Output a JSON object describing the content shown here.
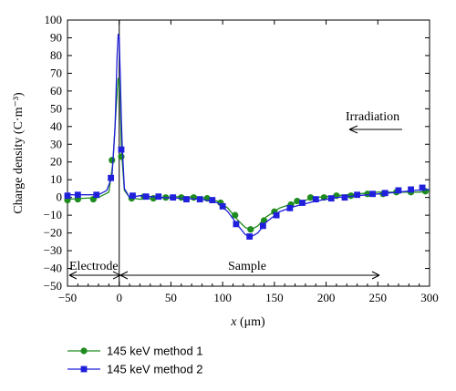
{
  "chart_data": {
    "type": "line",
    "xlabel": "x (μm)",
    "xlabel_parts": {
      "var": "x",
      "unit": "(μm)"
    },
    "ylabel": "Charge density (C·m⁻³)",
    "xlim": [
      -50,
      300
    ],
    "ylim": [
      -50,
      100
    ],
    "xticks": [
      -50,
      0,
      50,
      100,
      150,
      200,
      250,
      300
    ],
    "yticks": [
      -50,
      -40,
      -30,
      -20,
      -10,
      0,
      10,
      20,
      30,
      40,
      50,
      60,
      70,
      80,
      90,
      100
    ],
    "grid": false,
    "legend_position": "bottom-left, below plot",
    "series": [
      {
        "name": "145 keV method 1",
        "color": "#1e8c1e",
        "marker": "circle",
        "line": [
          [
            -50,
            -1
          ],
          [
            -35,
            -0.5
          ],
          [
            -20,
            0
          ],
          [
            -10,
            3
          ],
          [
            -6,
            20
          ],
          [
            -3,
            50
          ],
          [
            -1,
            67
          ],
          [
            0,
            66
          ],
          [
            1,
            55
          ],
          [
            2,
            30
          ],
          [
            3,
            20
          ],
          [
            5,
            4
          ],
          [
            10,
            0
          ],
          [
            20,
            -1
          ],
          [
            40,
            0
          ],
          [
            60,
            0.5
          ],
          [
            80,
            0
          ],
          [
            95,
            -2
          ],
          [
            105,
            -6
          ],
          [
            115,
            -13
          ],
          [
            122,
            -17
          ],
          [
            128,
            -18
          ],
          [
            134,
            -16
          ],
          [
            142,
            -11
          ],
          [
            155,
            -6
          ],
          [
            170,
            -3
          ],
          [
            190,
            0
          ],
          [
            210,
            1
          ],
          [
            230,
            2
          ],
          [
            250,
            3
          ],
          [
            270,
            3
          ],
          [
            290,
            3
          ],
          [
            300,
            3.5
          ]
        ],
        "markers": [
          [
            -50,
            -1.5
          ],
          [
            -40,
            -1
          ],
          [
            -25,
            -1
          ],
          [
            -7,
            21
          ],
          [
            2,
            23
          ],
          [
            12,
            -0.5
          ],
          [
            24,
            0.5
          ],
          [
            33,
            -0.5
          ],
          [
            45,
            0
          ],
          [
            60,
            0
          ],
          [
            72,
            0
          ],
          [
            85,
            -0.5
          ],
          [
            98,
            -3
          ],
          [
            112,
            -10
          ],
          [
            127,
            -18
          ],
          [
            140,
            -13
          ],
          [
            150,
            -8
          ],
          [
            166,
            -4
          ],
          [
            172,
            -2
          ],
          [
            185,
            0
          ],
          [
            198,
            0
          ],
          [
            210,
            1
          ],
          [
            224,
            1
          ],
          [
            240,
            2
          ],
          [
            255,
            2
          ],
          [
            268,
            3
          ],
          [
            282,
            3
          ],
          [
            296,
            3.5
          ]
        ]
      },
      {
        "name": "145 keV method 2",
        "color": "#1f1fdc",
        "marker": "square",
        "line": [
          [
            -50,
            1.5
          ],
          [
            -35,
            1.5
          ],
          [
            -20,
            1.5
          ],
          [
            -12,
            4
          ],
          [
            -7,
            12
          ],
          [
            -4,
            40
          ],
          [
            -2,
            80
          ],
          [
            -1,
            92
          ],
          [
            0,
            90
          ],
          [
            1,
            70
          ],
          [
            2,
            45
          ],
          [
            3,
            28
          ],
          [
            5,
            5
          ],
          [
            10,
            0
          ],
          [
            20,
            1
          ],
          [
            40,
            0
          ],
          [
            60,
            -0.5
          ],
          [
            80,
            -1
          ],
          [
            95,
            -3
          ],
          [
            105,
            -8
          ],
          [
            115,
            -16
          ],
          [
            122,
            -21
          ],
          [
            128,
            -22
          ],
          [
            134,
            -20
          ],
          [
            142,
            -14
          ],
          [
            155,
            -8
          ],
          [
            170,
            -5
          ],
          [
            190,
            -2
          ],
          [
            210,
            0
          ],
          [
            230,
            1
          ],
          [
            250,
            2
          ],
          [
            270,
            3
          ],
          [
            285,
            4
          ],
          [
            300,
            4.5
          ]
        ],
        "markers": [
          [
            -50,
            1
          ],
          [
            -40,
            1.5
          ],
          [
            -22,
            1.5
          ],
          [
            -8,
            11
          ],
          [
            2,
            27
          ],
          [
            13,
            1
          ],
          [
            26,
            0.5
          ],
          [
            38,
            0.5
          ],
          [
            52,
            0
          ],
          [
            65,
            -1
          ],
          [
            78,
            -1
          ],
          [
            90,
            -1.5
          ],
          [
            100,
            -5
          ],
          [
            113,
            -15
          ],
          [
            126,
            -22
          ],
          [
            139,
            -16
          ],
          [
            152,
            -10
          ],
          [
            165,
            -6
          ],
          [
            177,
            -3
          ],
          [
            190,
            -1
          ],
          [
            205,
            -0.5
          ],
          [
            218,
            0
          ],
          [
            230,
            1.5
          ],
          [
            245,
            2
          ],
          [
            257,
            2.5
          ],
          [
            270,
            4
          ],
          [
            282,
            4.5
          ],
          [
            293,
            5.5
          ]
        ]
      }
    ],
    "annotations": {
      "irradiation": "Irradiation",
      "electrode": "Electrode",
      "sample": "Sample"
    }
  }
}
